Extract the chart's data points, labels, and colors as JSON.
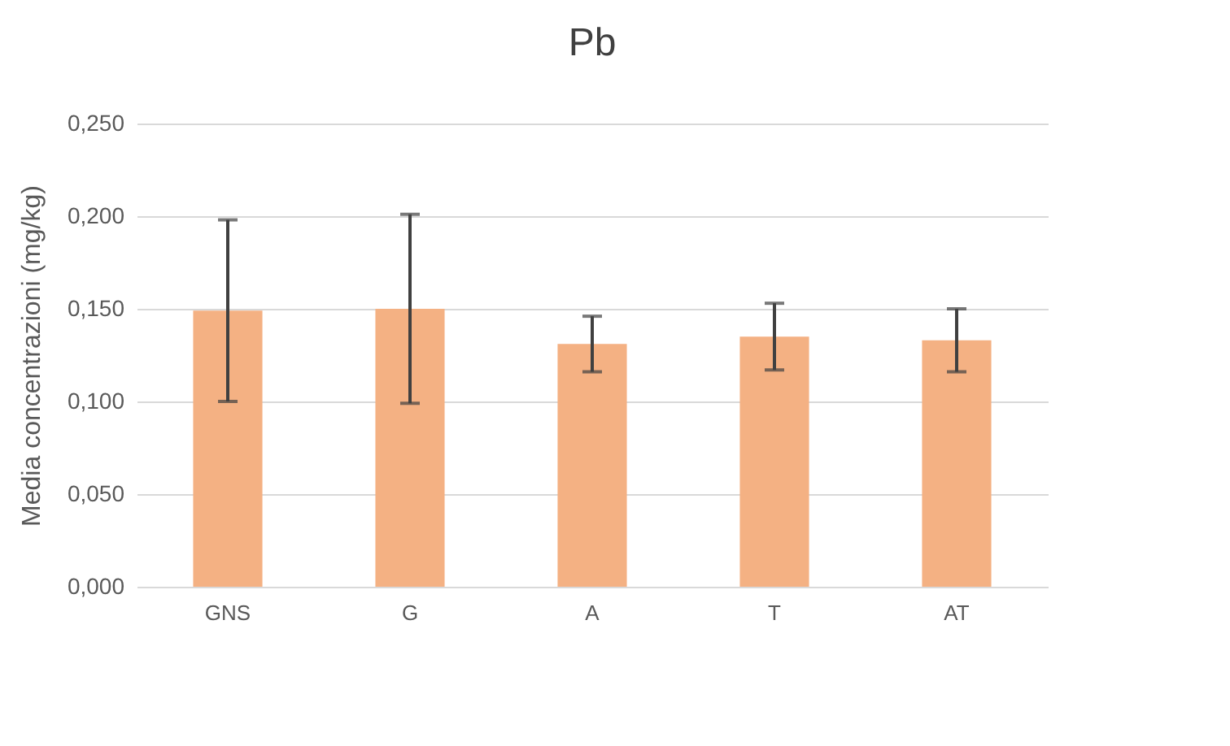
{
  "chart_data": {
    "type": "bar",
    "title": "Pb",
    "ylabel": "Media concentrazioni (mg/kg)",
    "categories": [
      "GNS",
      "G",
      "A",
      "T",
      "AT"
    ],
    "values": [
      0.149,
      0.15,
      0.131,
      0.135,
      0.133
    ],
    "errors": [
      0.049,
      0.051,
      0.015,
      0.018,
      0.017
    ],
    "color": "#f4b183",
    "ylim": [
      0,
      0.25
    ],
    "yticks": [
      {
        "value": 0,
        "label": "0,000"
      },
      {
        "value": 0.05,
        "label": "0,050"
      },
      {
        "value": 0.1,
        "label": "0,100"
      },
      {
        "value": 0.15,
        "label": "0,150"
      },
      {
        "value": 0.2,
        "label": "0,200"
      },
      {
        "value": 0.25,
        "label": "0,250"
      }
    ],
    "grid": "y"
  }
}
